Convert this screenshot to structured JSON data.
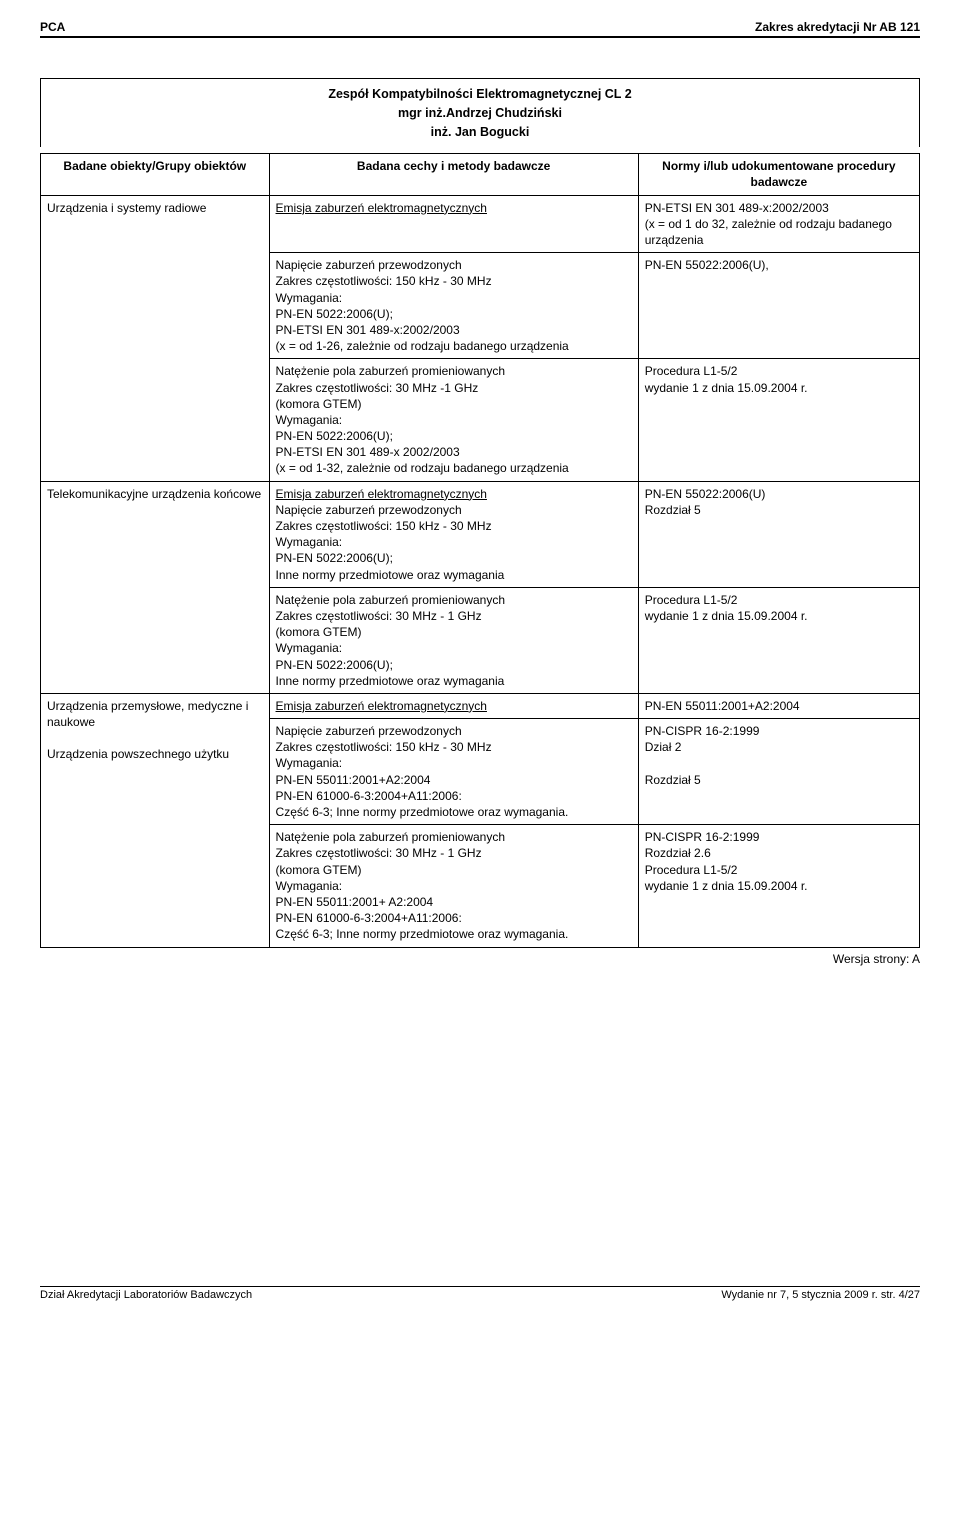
{
  "header": {
    "left": "PCA",
    "right": "Zakres akredytacji Nr AB 121"
  },
  "title": {
    "line1": "Zespół Kompatybilności Elektromagnetycznej CL 2",
    "line2": "mgr inż.Andrzej Chudziński",
    "line3": "inż. Jan Bogucki"
  },
  "table": {
    "headers": {
      "c1": "Badane obiekty/Grupy obiektów",
      "c2": "Badana cechy i metody badawcze",
      "c3": "Normy i/lub udokumentowane procedury badawcze"
    },
    "rows": [
      {
        "c1": "Urządzenia i systemy radiowe",
        "c2_u": "Emisja zaburzeń elektromagnetycznych",
        "c3": "PN-ETSI EN 301 489-x:2002/2003\n(x = od 1 do 32, zależnie od rodzaju badanego urządzenia"
      },
      {
        "c2": "Napięcie zaburzeń przewodzonych\nZakres częstotliwości: 150 kHz - 30 MHz\nWymagania:\nPN-EN 5022:2006(U);\nPN-ETSI EN 301 489-x:2002/2003\n(x = od 1-26, zależnie od rodzaju badanego urządzenia",
        "c3": "PN-EN 55022:2006(U),"
      },
      {
        "c2": "Natężenie pola zaburzeń promieniowanych\nZakres częstotliwości: 30 MHz -1 GHz\n(komora GTEM)\nWymagania:\nPN-EN 5022:2006(U);\nPN-ETSI EN 301 489-x 2002/2003\n(x = od 1-32, zależnie od rodzaju badanego urządzenia",
        "c3": "Procedura L1-5/2\nwydanie 1 z dnia 15.09.2004 r."
      },
      {
        "c1": "Telekomunikacyjne urządzenia końcowe",
        "c2_u": "Emisja zaburzeń elektromagnetycznych",
        "c2_rest": "\nNapięcie zaburzeń przewodzonych\nZakres częstotliwości: 150 kHz - 30 MHz\nWymagania:\nPN-EN 5022:2006(U);\nInne normy przedmiotowe oraz wymagania",
        "c3": "PN-EN 55022:2006(U)\nRozdział 5"
      },
      {
        "c2": "Natężenie pola zaburzeń promieniowanych\nZakres częstotliwości: 30 MHz  - 1 GHz\n(komora GTEM)\nWymagania:\nPN-EN 5022:2006(U);\nInne normy przedmiotowe oraz wymagania",
        "c3": "Procedura L1-5/2\nwydanie 1 z dnia 15.09.2004 r."
      },
      {
        "c2_u": "Emisja zaburzeń elektromagnetycznych",
        "c3": "PN-EN 55011:2001+A2:2004"
      },
      {
        "c1": "Urządzenia przemysłowe, medyczne i naukowe\n\nUrządzenia powszechnego użytku",
        "c2": "Napięcie zaburzeń przewodzonych\nZakres częstotliwości: 150 kHz - 30 MHz\nWymagania:\nPN-EN 55011:2001+A2:2004\nPN-EN 61000-6-3:2004+A11:2006:\nCzęść 6-3; Inne normy przedmiotowe oraz wymagania.",
        "c3": "PN-CISPR 16-2:1999\nDział 2\n\nRozdział 5"
      },
      {
        "c2": "Natężenie pola zaburzeń promieniowanych\nZakres częstotliwości: 30 MHz - 1 GHz\n(komora GTEM)\nWymagania:\nPN-EN 55011:2001+ A2:2004\nPN-EN 61000-6-3:2004+A11:2006:\nCzęść 6-3; Inne normy przedmiotowe oraz wymagania.",
        "c3": "PN-CISPR 16-2:1999\nRozdział 2.6\nProcedura L1-5/2\nwydanie 1 z dnia 15.09.2004 r."
      }
    ]
  },
  "version": "Wersja strony: A",
  "footer": {
    "left": "Dział Akredytacji Laboratoriów Badawczych",
    "right": "Wydanie nr 7, 5 stycznia 2009 r.    str. 4/27"
  }
}
